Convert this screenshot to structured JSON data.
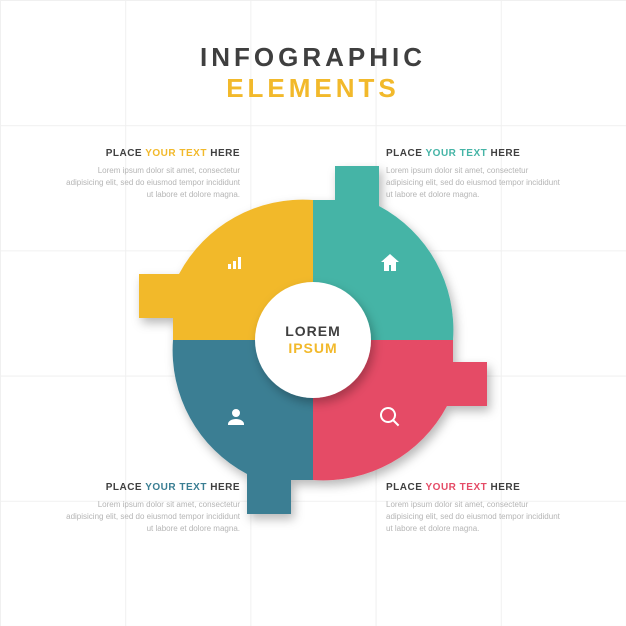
{
  "header": {
    "line1": "INFOGRAPHIC",
    "line2": "ELEMENTS",
    "line1_color": "#3f3f3f",
    "line2_color": "#f2b92b"
  },
  "center": {
    "line1": "LOREM",
    "line2": "IPSUM",
    "line1_color": "#3f3f3f",
    "line2_color": "#f2b92b",
    "fill": "#ffffff",
    "radius": 58
  },
  "diagram": {
    "type": "infographic",
    "outer_radius": 140,
    "inner_radius": 58,
    "tab_length": 34,
    "tab_thickness": 44,
    "background_color": "#ffffff",
    "shadow_color": "rgba(0,0,0,0.25)",
    "quadrants": [
      {
        "id": "tl",
        "color": "#f2b92b",
        "icon": "bars",
        "tab_side": "left"
      },
      {
        "id": "tr",
        "color": "#45b4a6",
        "icon": "home",
        "tab_side": "top"
      },
      {
        "id": "br",
        "color": "#e54b66",
        "icon": "search",
        "tab_side": "right"
      },
      {
        "id": "bl",
        "color": "#3a7e93",
        "icon": "user",
        "tab_side": "bottom"
      }
    ]
  },
  "textblocks": {
    "heading_pre": "PLACE ",
    "heading_accent": "YOUR TEXT",
    "heading_post": " HERE",
    "heading_color": "#3f3f3f",
    "body": "Lorem ipsum dolor sit amet, consectetur adipisicing elit, sed do eiusmod tempor incididunt ut labore et dolore magna.",
    "body_color": "#b5b5b5",
    "accents": {
      "tl": "#f2b92b",
      "tr": "#45b4a6",
      "bl": "#3a7e93",
      "br": "#e54b66"
    }
  }
}
